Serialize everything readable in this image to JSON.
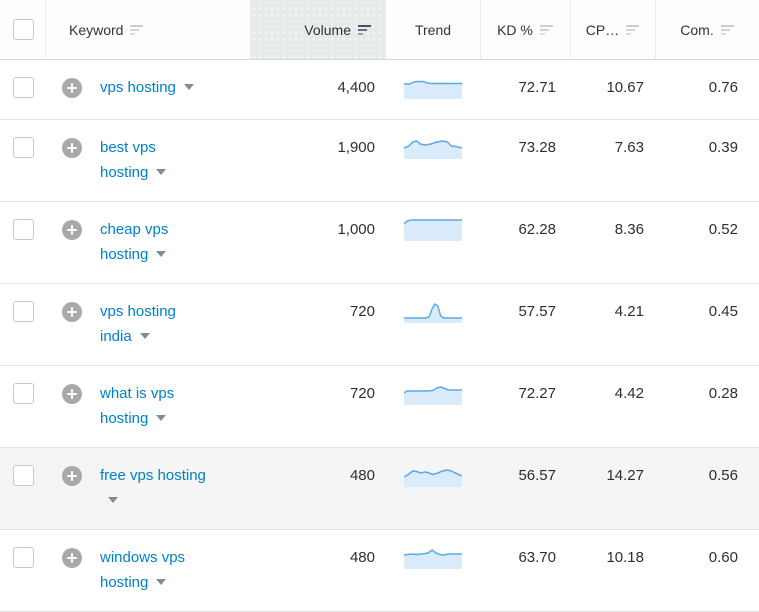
{
  "header": {
    "columns": [
      {
        "label": "Keyword",
        "sort": "inactive"
      },
      {
        "label": "Volume",
        "sort": "active",
        "highlighted": true
      },
      {
        "label": "Trend",
        "sort": "none"
      },
      {
        "label": "KD %",
        "sort": "inactive"
      },
      {
        "label": "CP…",
        "sort": "inactive"
      },
      {
        "label": "Com.",
        "sort": "inactive"
      }
    ]
  },
  "rows": [
    {
      "keyword": "vps hosting",
      "keyword_lines": [
        "vps hosting"
      ],
      "volume": "4,400",
      "kd": "72.71",
      "cpc": "10.67",
      "com": "0.76",
      "shaded": false,
      "trend": [
        [
          0,
          9
        ],
        [
          6,
          9
        ],
        [
          10,
          7
        ],
        [
          14,
          6.5
        ],
        [
          20,
          6.5
        ],
        [
          24,
          8
        ],
        [
          28,
          8.5
        ],
        [
          60,
          8.5
        ]
      ]
    },
    {
      "keyword": "best vps hosting",
      "keyword_lines": [
        "best vps",
        "hosting"
      ],
      "volume": "1,900",
      "kd": "73.28",
      "cpc": "7.63",
      "com": "0.39",
      "shaded": false,
      "trend": [
        [
          0,
          13
        ],
        [
          5,
          11
        ],
        [
          9,
          7
        ],
        [
          13,
          6
        ],
        [
          17,
          9
        ],
        [
          22,
          10
        ],
        [
          28,
          9
        ],
        [
          34,
          7
        ],
        [
          40,
          6
        ],
        [
          45,
          7
        ],
        [
          49,
          11
        ],
        [
          54,
          11.5
        ],
        [
          60,
          13
        ]
      ]
    },
    {
      "keyword": "cheap vps hosting",
      "keyword_lines": [
        "cheap vps",
        "hosting"
      ],
      "volume": "1,000",
      "kd": "62.28",
      "cpc": "8.36",
      "com": "0.52",
      "shaded": false,
      "trend": [
        [
          0,
          7
        ],
        [
          3,
          4
        ],
        [
          8,
          3
        ],
        [
          60,
          3
        ]
      ]
    },
    {
      "keyword": "vps hosting india",
      "keyword_lines": [
        "vps hosting",
        "india"
      ],
      "volume": "720",
      "kd": "57.57",
      "cpc": "4.21",
      "com": "0.45",
      "shaded": false,
      "trend": [
        [
          0,
          19
        ],
        [
          22,
          19
        ],
        [
          26,
          18
        ],
        [
          29,
          10
        ],
        [
          32,
          5
        ],
        [
          35,
          7
        ],
        [
          38,
          17
        ],
        [
          41,
          19
        ],
        [
          60,
          19
        ]
      ]
    },
    {
      "keyword": "what is vps hosting",
      "keyword_lines": [
        "what is vps",
        "hosting"
      ],
      "volume": "720",
      "kd": "72.27",
      "cpc": "4.42",
      "com": "0.28",
      "shaded": false,
      "trend": [
        [
          0,
          12
        ],
        [
          3,
          10
        ],
        [
          10,
          10
        ],
        [
          22,
          10
        ],
        [
          30,
          9.5
        ],
        [
          34,
          7
        ],
        [
          38,
          6
        ],
        [
          42,
          7.5
        ],
        [
          46,
          9
        ],
        [
          54,
          9
        ],
        [
          60,
          9
        ]
      ]
    },
    {
      "keyword": "free vps hosting",
      "keyword_lines": [
        "free vps hosting",
        ""
      ],
      "volume": "480",
      "kd": "56.57",
      "cpc": "14.27",
      "com": "0.56",
      "shaded": true,
      "trend": [
        [
          0,
          14
        ],
        [
          5,
          11
        ],
        [
          9,
          8
        ],
        [
          13,
          8.5
        ],
        [
          17,
          10
        ],
        [
          22,
          9
        ],
        [
          26,
          10
        ],
        [
          30,
          11.5
        ],
        [
          35,
          10
        ],
        [
          40,
          8
        ],
        [
          45,
          7
        ],
        [
          49,
          8
        ],
        [
          53,
          10
        ],
        [
          60,
          13
        ]
      ]
    },
    {
      "keyword": "windows vps hosting",
      "keyword_lines": [
        "windows vps",
        "hosting"
      ],
      "volume": "480",
      "kd": "63.70",
      "cpc": "10.18",
      "com": "0.60",
      "shaded": false,
      "trend": [
        [
          0,
          10
        ],
        [
          7,
          9
        ],
        [
          13,
          9.5
        ],
        [
          19,
          9
        ],
        [
          25,
          8
        ],
        [
          29,
          5
        ],
        [
          33,
          8
        ],
        [
          37,
          9.5
        ],
        [
          41,
          10
        ],
        [
          46,
          9
        ],
        [
          53,
          9
        ],
        [
          60,
          9
        ]
      ]
    }
  ],
  "colors": {
    "accent": "#0081c7",
    "spark_line": "#58aae8",
    "spark_fill": "#daecfb",
    "row_shaded": "#f4f5f4",
    "volume_header_highlight": "#e6eae8",
    "sort_active": [
      "#44535d",
      "#63737d",
      "#9aa8b0"
    ],
    "sort_inactive": [
      "#c5ced3",
      "#ced6da",
      "#d7dde0"
    ]
  }
}
